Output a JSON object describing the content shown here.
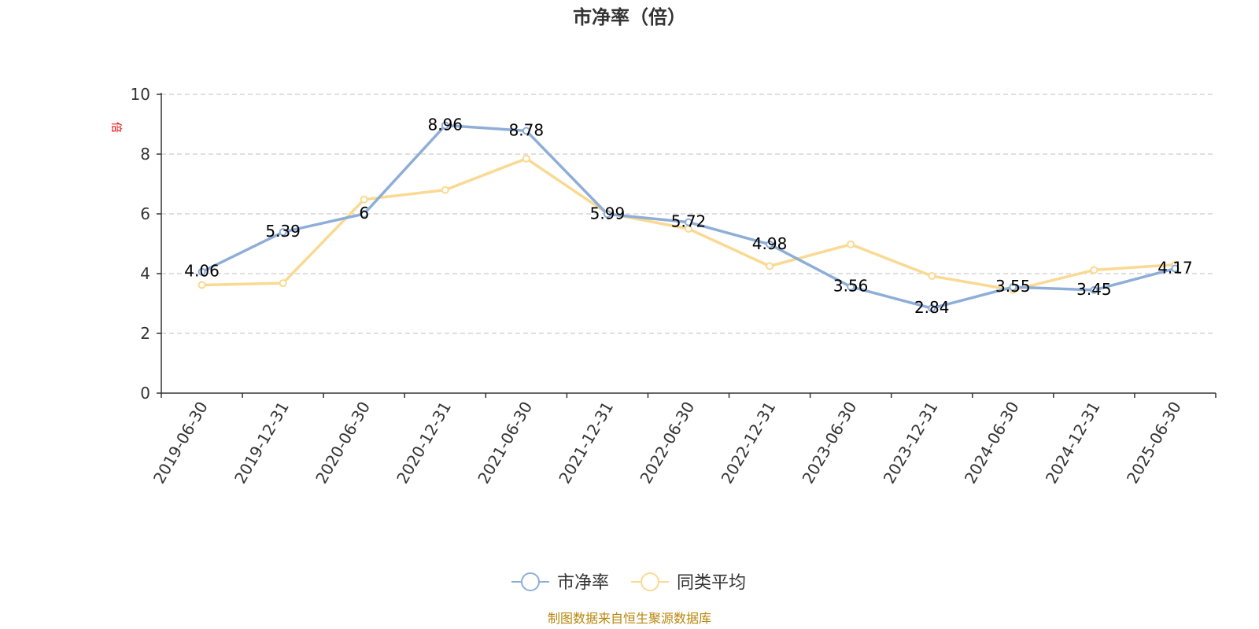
{
  "chart_data": {
    "type": "line",
    "title": "市净率（倍）",
    "ylabel": "倍",
    "categories": [
      "2019-06-30",
      "2019-12-31",
      "2020-06-30",
      "2020-12-31",
      "2021-06-30",
      "2021-12-31",
      "2022-06-30",
      "2022-12-31",
      "2023-06-30",
      "2023-12-31",
      "2024-06-30",
      "2024-12-31",
      "2025-06-30"
    ],
    "yticks": [
      "0",
      "2",
      "4",
      "6",
      "8",
      "10"
    ],
    "ylim": [
      0,
      10
    ],
    "grid": "horizontal-dashed",
    "legend_position": "bottom-center",
    "series": [
      {
        "name": "市净率",
        "color": "#8eaed8",
        "values": [
          4.06,
          5.39,
          6,
          8.96,
          8.78,
          5.99,
          5.72,
          4.98,
          3.56,
          2.84,
          3.55,
          3.45,
          4.17
        ],
        "labels": [
          "4.06",
          "5.39",
          "6",
          "8.96",
          "8.78",
          "5.99",
          "5.72",
          "4.98",
          "3.56",
          "2.84",
          "3.55",
          "3.45",
          "4.17"
        ]
      },
      {
        "name": "同类平均",
        "color": "#fad993",
        "values": [
          3.62,
          3.68,
          6.48,
          6.8,
          7.85,
          6.02,
          5.5,
          4.25,
          4.98,
          3.92,
          3.45,
          4.12,
          4.3
        ]
      }
    ],
    "source": "制图数据来自恒生聚源数据库"
  }
}
